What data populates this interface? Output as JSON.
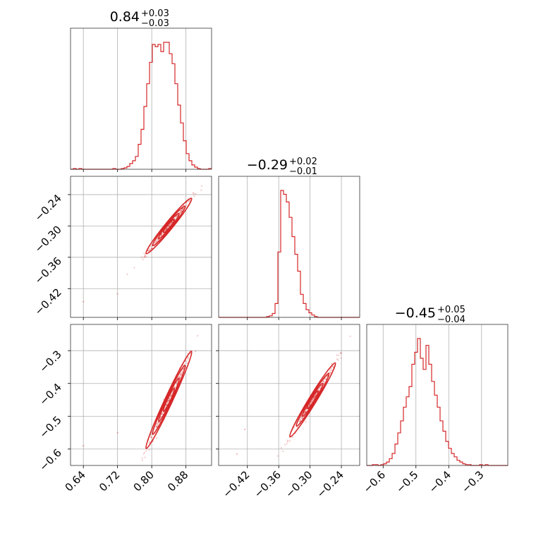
{
  "chart_data": {
    "type": "corner",
    "color": "#d62728",
    "grid": true,
    "parameters": [
      {
        "title": {
          "value": "0.84",
          "plus": "+0.03",
          "minus": "−0.03"
        },
        "range": [
          0.61,
          0.94
        ],
        "ticks": [
          0.64,
          0.72,
          0.8,
          0.88
        ],
        "tick_labels": [
          "0.64",
          "0.72",
          "0.80",
          "0.88"
        ]
      },
      {
        "title": {
          "value": "−0.29",
          "plus": "+0.02",
          "minus": "−0.01"
        },
        "range": [
          -0.475,
          -0.205
        ],
        "ticks": [
          -0.42,
          -0.36,
          -0.3,
          -0.24
        ],
        "tick_labels": [
          "−0.42",
          "−0.36",
          "−0.30",
          "−0.24"
        ]
      },
      {
        "title": {
          "value": "−0.45",
          "plus": "+0.05",
          "minus": "−0.04"
        },
        "range": [
          -0.65,
          -0.22
        ],
        "ticks": [
          -0.6,
          -0.5,
          -0.4,
          -0.3
        ],
        "tick_labels": [
          "−0.6",
          "−0.5",
          "−0.4",
          "−0.3"
        ]
      }
    ],
    "histograms": [
      {
        "parameter": 0,
        "bin_start": 0.61,
        "bin_width": 0.0066,
        "counts": [
          0,
          1,
          0,
          1,
          0,
          0,
          0,
          0,
          0,
          0,
          0,
          0,
          0,
          0,
          0,
          1,
          0,
          0,
          1,
          2,
          4,
          8,
          12,
          18,
          35,
          56,
          88,
          120,
          150,
          175,
          172,
          175,
          165,
          178,
          178,
          162,
          148,
          120,
          90,
          65,
          40,
          22,
          12,
          6,
          3,
          1,
          0,
          0,
          0,
          1
        ]
      },
      {
        "parameter": 1,
        "bin_start": -0.475,
        "bin_width": 0.0054,
        "counts": [
          0,
          0,
          0,
          0,
          0,
          0,
          0,
          0,
          0,
          0,
          0,
          0,
          0,
          0,
          0,
          0,
          0,
          1,
          2,
          5,
          18,
          85,
          165,
          160,
          150,
          130,
          105,
          82,
          60,
          30,
          18,
          10,
          6,
          3,
          1,
          0,
          0,
          0,
          0,
          0,
          0,
          0,
          0,
          0,
          0,
          0,
          0,
          0,
          0,
          0
        ]
      },
      {
        "parameter": 2,
        "bin_start": -0.65,
        "bin_width": 0.0086,
        "counts": [
          0,
          0,
          1,
          1,
          0,
          1,
          2,
          4,
          8,
          14,
          25,
          38,
          52,
          68,
          80,
          92,
          118,
          132,
          148,
          125,
          112,
          140,
          118,
          98,
          82,
          68,
          52,
          40,
          28,
          20,
          14,
          10,
          6,
          4,
          2,
          1,
          1,
          0,
          0,
          0,
          1,
          0,
          1,
          0,
          0,
          0,
          0,
          0,
          0,
          0
        ]
      }
    ],
    "scatter_panels": [
      {
        "x_param": 0,
        "y_param": 1,
        "density_center": [
          0.84,
          -0.3
        ],
        "slope": 1.0,
        "outliers": [
          [
            0.64,
            -0.445
          ],
          [
            0.72,
            -0.43
          ]
        ]
      },
      {
        "x_param": 0,
        "y_param": 2,
        "density_center": [
          0.84,
          -0.45
        ],
        "slope": 2.8,
        "outliers": [
          [
            0.64,
            -0.59
          ],
          [
            0.72,
            -0.55
          ]
        ]
      },
      {
        "x_param": 1,
        "y_param": 2,
        "density_center": [
          -0.295,
          -0.45
        ],
        "slope": 2.6,
        "outliers": [
          [
            -0.425,
            -0.54
          ],
          [
            -0.44,
            -0.615
          ]
        ]
      }
    ]
  }
}
